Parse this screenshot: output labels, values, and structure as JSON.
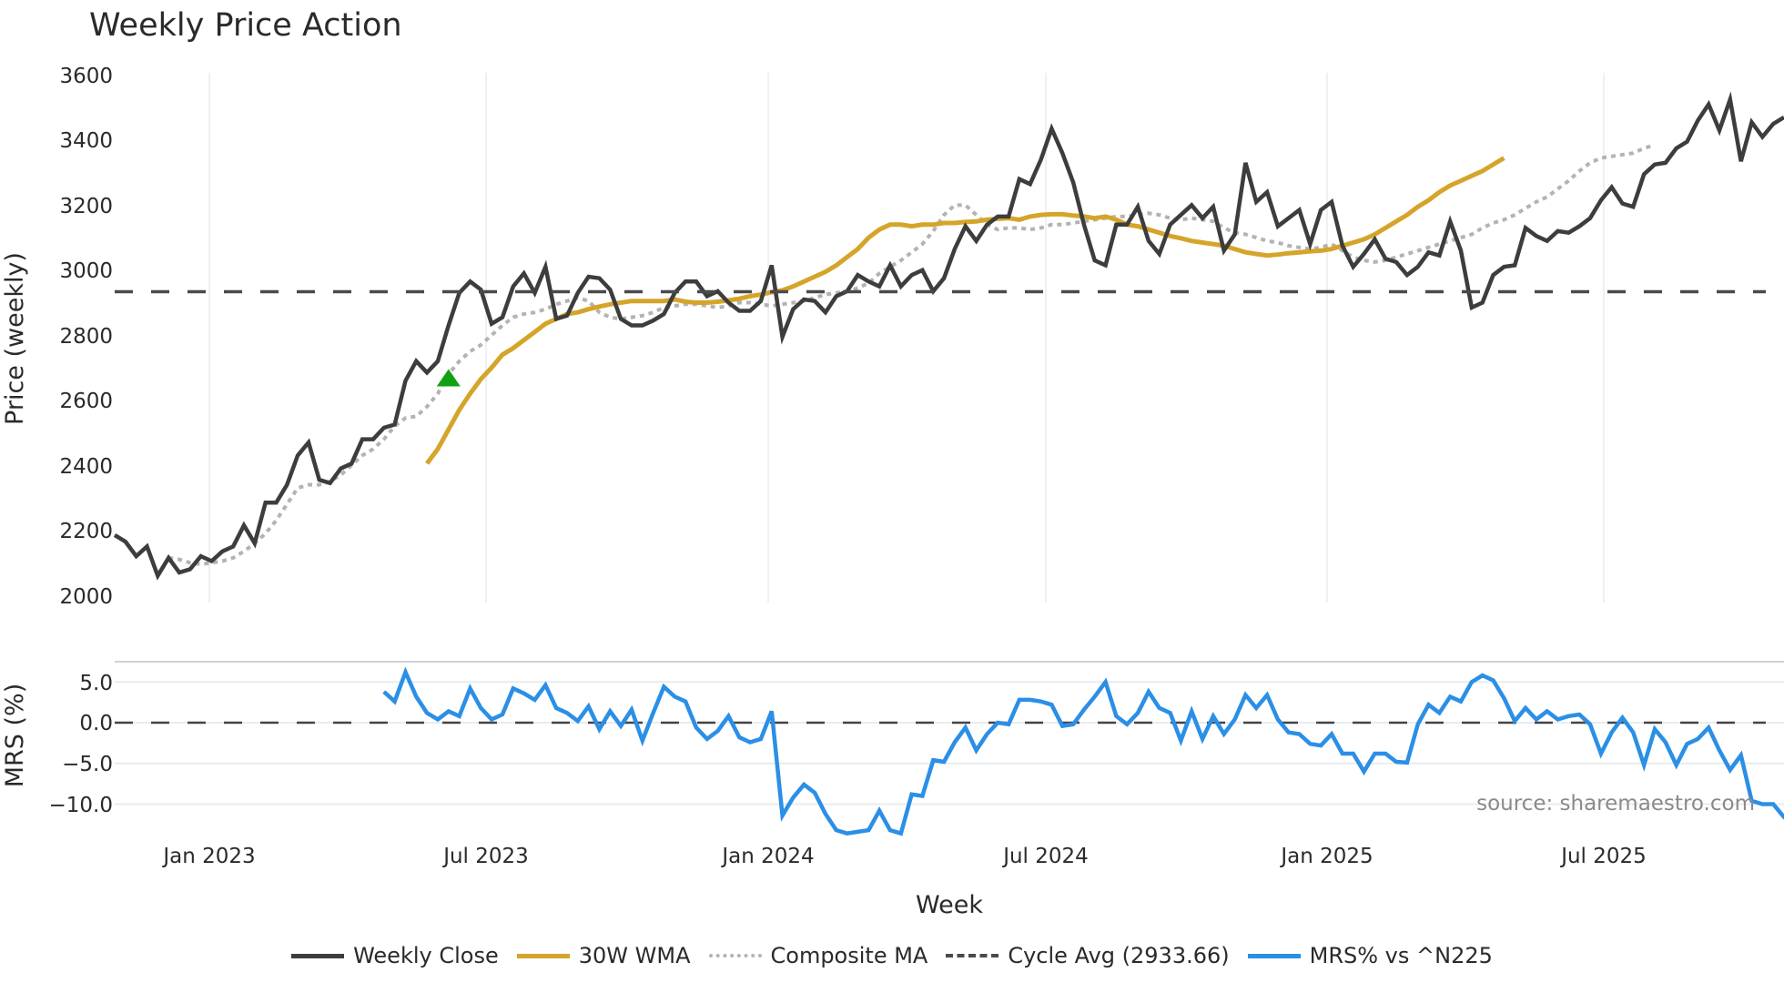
{
  "title": "Weekly Price Action",
  "price_axis": {
    "label": "Price (weekly)",
    "ticks": [
      "3600",
      "3400",
      "3200",
      "3000",
      "2800",
      "2600",
      "2400",
      "2200",
      "2000"
    ]
  },
  "mrs_axis": {
    "label": "MRS (%)",
    "ticks": [
      "5.0",
      "0.0",
      "−5.0",
      "−10.0"
    ]
  },
  "x_axis": {
    "label": "Week",
    "ticks": [
      "Jan 2023",
      "Jul 2023",
      "Jan 2024",
      "Jul 2024",
      "Jan 2025",
      "Jul 2025"
    ]
  },
  "source": "source: sharemaestro.com",
  "legend": [
    {
      "label": "Weekly Close",
      "color": "#3d3d3d",
      "style": "solid"
    },
    {
      "label": "30W WMA",
      "color": "#d4a52a",
      "style": "solid"
    },
    {
      "label": "Composite MA",
      "color": "#b3b3b3",
      "style": "dotted"
    },
    {
      "label": "Cycle Avg (2933.66)",
      "color": "#4a4a4a",
      "style": "dashed"
    },
    {
      "label": "MRS% vs ^N225",
      "color": "#2b8fe6",
      "style": "solid"
    }
  ],
  "colors": {
    "close": "#3d3d3d",
    "wma": "#d4a52a",
    "composite": "#b3b3b3",
    "cycle": "#4a4a4a",
    "mrs": "#2b8fe6",
    "marker": "#11a011",
    "grid": "#e8ecf0"
  },
  "chart_data": [
    {
      "type": "line",
      "title": "Weekly Price Action",
      "xlabel": "Week",
      "ylabel": "Price (weekly)",
      "ylim": [
        2000,
        3600
      ],
      "x_ticks": [
        "Jan 2023",
        "Jul 2023",
        "Jan 2024",
        "Jul 2024",
        "Jan 2025",
        "Jul 2025"
      ],
      "grid": "vertical",
      "legend_position": "bottom",
      "x_start": "2022-11",
      "x_step": "1 week",
      "series": [
        {
          "name": "Weekly Close",
          "values": [
            2185,
            2165,
            2120,
            2150,
            2060,
            2115,
            2070,
            2080,
            2120,
            2105,
            2135,
            2150,
            2215,
            2160,
            2285,
            2285,
            2340,
            2430,
            2470,
            2355,
            2345,
            2390,
            2405,
            2480,
            2480,
            2515,
            2525,
            2660,
            2720,
            2685,
            2720,
            2830,
            2930,
            2965,
            2940,
            2835,
            2855,
            2950,
            2990,
            2930,
            3010,
            2850,
            2860,
            2930,
            2980,
            2975,
            2940,
            2850,
            2830,
            2830,
            2845,
            2865,
            2930,
            2965,
            2965,
            2920,
            2935,
            2900,
            2875,
            2875,
            2905,
            3015,
            2795,
            2880,
            2910,
            2905,
            2870,
            2920,
            2935,
            2985,
            2965,
            2950,
            3015,
            2950,
            2985,
            3000,
            2935,
            2975,
            3065,
            3135,
            3090,
            3140,
            3165,
            3165,
            3280,
            3265,
            3340,
            3435,
            3360,
            3270,
            3140,
            3030,
            3015,
            3140,
            3140,
            3195,
            3090,
            3050,
            3140,
            3170,
            3200,
            3160,
            3195,
            3060,
            3110,
            3330,
            3210,
            3240,
            3135,
            3160,
            3185,
            3080,
            3185,
            3210,
            3075,
            3010,
            3050,
            3095,
            3035,
            3025,
            2985,
            3010,
            3055,
            3045,
            3150,
            3060,
            2885,
            2900,
            2985,
            3010,
            3015,
            3130,
            3105,
            3090,
            3120,
            3115,
            3135,
            3160,
            3215,
            3255,
            3205,
            3195,
            3295,
            3325,
            3330,
            3375,
            3395,
            3460,
            3510,
            3430,
            3525,
            3335,
            3455,
            3410,
            3450,
            3470
          ]
        },
        {
          "name": "30W WMA",
          "start_index": 29,
          "values": [
            2405,
            2450,
            2510,
            2570,
            2620,
            2665,
            2700,
            2740,
            2760,
            2785,
            2810,
            2835,
            2850,
            2865,
            2870,
            2880,
            2888,
            2895,
            2900,
            2905,
            2905,
            2905,
            2905,
            2910,
            2903,
            2900,
            2900,
            2903,
            2907,
            2912,
            2920,
            2925,
            2932,
            2938,
            2950,
            2965,
            2980,
            2995,
            3015,
            3040,
            3065,
            3100,
            3125,
            3140,
            3140,
            3135,
            3140,
            3140,
            3145,
            3145,
            3148,
            3150,
            3155,
            3158,
            3160,
            3155,
            3165,
            3170,
            3172,
            3172,
            3168,
            3165,
            3160,
            3165,
            3155,
            3140,
            3135,
            3125,
            3115,
            3105,
            3098,
            3090,
            3085,
            3080,
            3075,
            3065,
            3055,
            3050,
            3045,
            3048,
            3052,
            3055,
            3058,
            3060,
            3065,
            3075,
            3085,
            3095,
            3110,
            3130,
            3150,
            3170,
            3195,
            3215,
            3240,
            3260,
            3275,
            3290,
            3305,
            3325,
            3345
          ]
        },
        {
          "name": "Composite MA",
          "start_index": 5,
          "values": [
            2115,
            2110,
            2100,
            2095,
            2100,
            2105,
            2115,
            2135,
            2160,
            2190,
            2230,
            2280,
            2330,
            2340,
            2340,
            2350,
            2370,
            2400,
            2430,
            2450,
            2480,
            2520,
            2545,
            2550,
            2580,
            2620,
            2680,
            2720,
            2750,
            2770,
            2800,
            2830,
            2855,
            2865,
            2870,
            2880,
            2895,
            2905,
            2915,
            2905,
            2870,
            2855,
            2850,
            2855,
            2860,
            2870,
            2885,
            2890,
            2895,
            2895,
            2890,
            2885,
            2890,
            2900,
            2900,
            2895,
            2890,
            2895,
            2900,
            2905,
            2915,
            2925,
            2930,
            2935,
            2945,
            2960,
            2990,
            3010,
            3030,
            3055,
            3080,
            3120,
            3170,
            3200,
            3200,
            3170,
            3140,
            3125,
            3130,
            3130,
            3125,
            3130,
            3140,
            3140,
            3145,
            3150,
            3155,
            3160,
            3165,
            3165,
            3170,
            3175,
            3170,
            3160,
            3155,
            3160,
            3155,
            3150,
            3130,
            3115,
            3110,
            3100,
            3090,
            3085,
            3075,
            3070,
            3065,
            3070,
            3080,
            3060,
            3040,
            3030,
            3025,
            3030,
            3040,
            3050,
            3060,
            3070,
            3080,
            3090,
            3100,
            3110,
            3130,
            3145,
            3155,
            3170,
            3190,
            3210,
            3225,
            3250,
            3275,
            3305,
            3330,
            3345,
            3350,
            3355,
            3360,
            3375,
            3385
          ]
        },
        {
          "name": "Cycle Avg (2933.66)",
          "values": [
            2933.66
          ],
          "type": "hline"
        }
      ],
      "annotations": [
        {
          "type": "marker",
          "shape": "triangle-up",
          "color": "#11a011",
          "index": 31,
          "value": 2665
        }
      ]
    },
    {
      "type": "line",
      "ylabel": "MRS (%)",
      "ylim": [
        -13.5,
        7.5
      ],
      "y_ticks": [
        5.0,
        0.0,
        -5.0,
        -10.0
      ],
      "series": [
        {
          "name": "MRS% vs ^N225",
          "start_index": 25,
          "values": [
            3.8,
            2.6,
            6.2,
            3.2,
            1.2,
            0.4,
            1.4,
            0.8,
            4.2,
            1.8,
            0.4,
            1.0,
            4.2,
            3.6,
            2.8,
            4.6,
            1.8,
            1.2,
            0.2,
            2.0,
            -0.8,
            1.4,
            -0.4,
            1.6,
            -2.2,
            1.2,
            4.4,
            3.2,
            2.6,
            -0.6,
            -2.0,
            -1.0,
            0.8,
            -1.8,
            -2.4,
            -2.0,
            1.4,
            -11.4,
            -9.2,
            -7.6,
            -8.6,
            -11.2,
            -13.2,
            -13.6,
            -13.4,
            -13.2,
            -10.8,
            -13.2,
            -13.6,
            -8.8,
            -9.0,
            -4.6,
            -4.8,
            -2.4,
            -0.6,
            -3.4,
            -1.4,
            0.0,
            -0.2,
            2.8,
            2.8,
            2.6,
            2.2,
            -0.4,
            -0.2,
            1.6,
            3.2,
            5.0,
            0.8,
            -0.2,
            1.2,
            3.8,
            1.8,
            1.2,
            -2.2,
            1.4,
            -2.0,
            0.8,
            -1.4,
            0.4,
            3.4,
            1.8,
            3.4,
            0.4,
            -1.2,
            -1.4,
            -2.6,
            -2.8,
            -1.4,
            -3.8,
            -3.8,
            -6.0,
            -3.8,
            -3.8,
            -4.8,
            -4.9,
            -0.2,
            2.2,
            1.2,
            3.2,
            2.6,
            5.0,
            5.8,
            5.2,
            3.0,
            0.2,
            1.8,
            0.4,
            1.4,
            0.4,
            0.8,
            1.0,
            -0.2,
            -3.8,
            -1.2,
            0.6,
            -1.2,
            -5.2,
            -0.8,
            -2.4,
            -5.2,
            -2.6,
            -2.0,
            -0.6,
            -3.4,
            -5.8,
            -4.0,
            -9.6,
            -10.0,
            -10.0,
            -11.6,
            -12.4
          ]
        },
        {
          "name": "zero line",
          "values": [
            0
          ],
          "type": "hline",
          "style": "dashed"
        }
      ]
    }
  ]
}
